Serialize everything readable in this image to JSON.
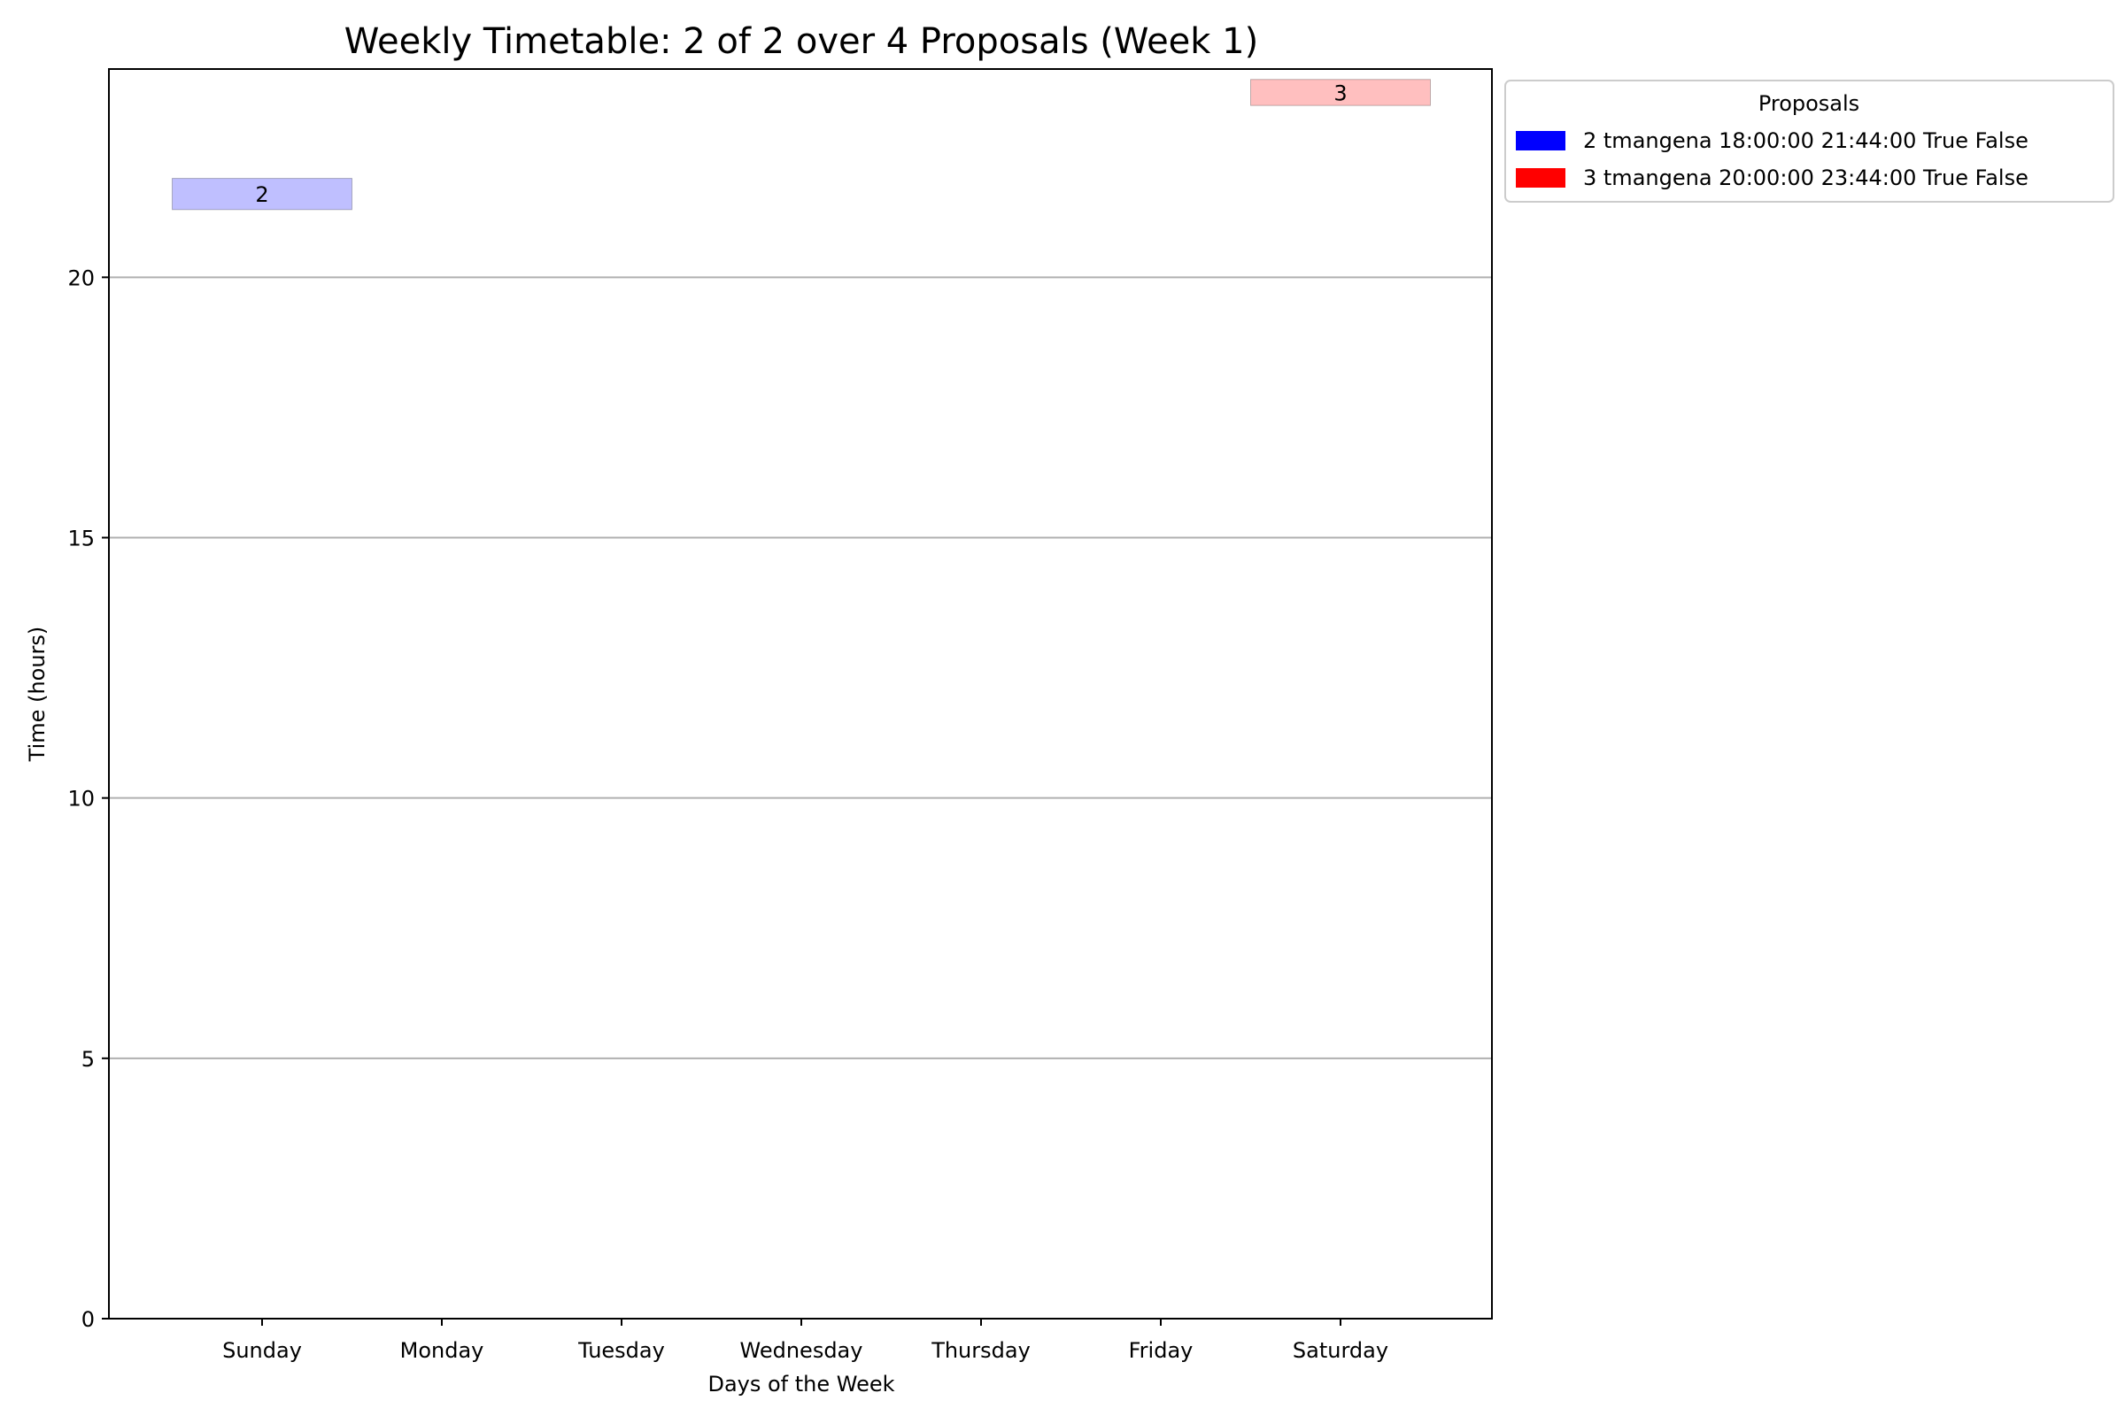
{
  "chart_data": {
    "type": "bar",
    "title": "Weekly Timetable: 2 of 2 over 4 Proposals (Week 1)",
    "xlabel": "Days of the Week",
    "ylabel": "Time (hours)",
    "categories": [
      "Sunday",
      "Monday",
      "Tuesday",
      "Wednesday",
      "Thursday",
      "Friday",
      "Saturday"
    ],
    "ylim": [
      0,
      24
    ],
    "yticks": [
      0,
      5,
      10,
      15,
      20
    ],
    "grid": "horizontal",
    "legend": {
      "title": "Proposals",
      "placement": "outside-top-right",
      "entries": [
        {
          "label": "2 tmangena 18:00:00 21:44:00 True False",
          "color": "#0000ff"
        },
        {
          "label": "3 tmangena 20:00:00 23:44:00 True False",
          "color": "#ff0000"
        }
      ]
    },
    "bars": [
      {
        "day": "Sunday",
        "start": 21.3,
        "end": 21.9,
        "label": "2",
        "color": "#0000ff",
        "opacity": 0.25
      },
      {
        "day": "Saturday",
        "start": 23.3,
        "end": 23.8,
        "label": "3",
        "color": "#ff0000",
        "opacity": 0.25
      }
    ]
  }
}
